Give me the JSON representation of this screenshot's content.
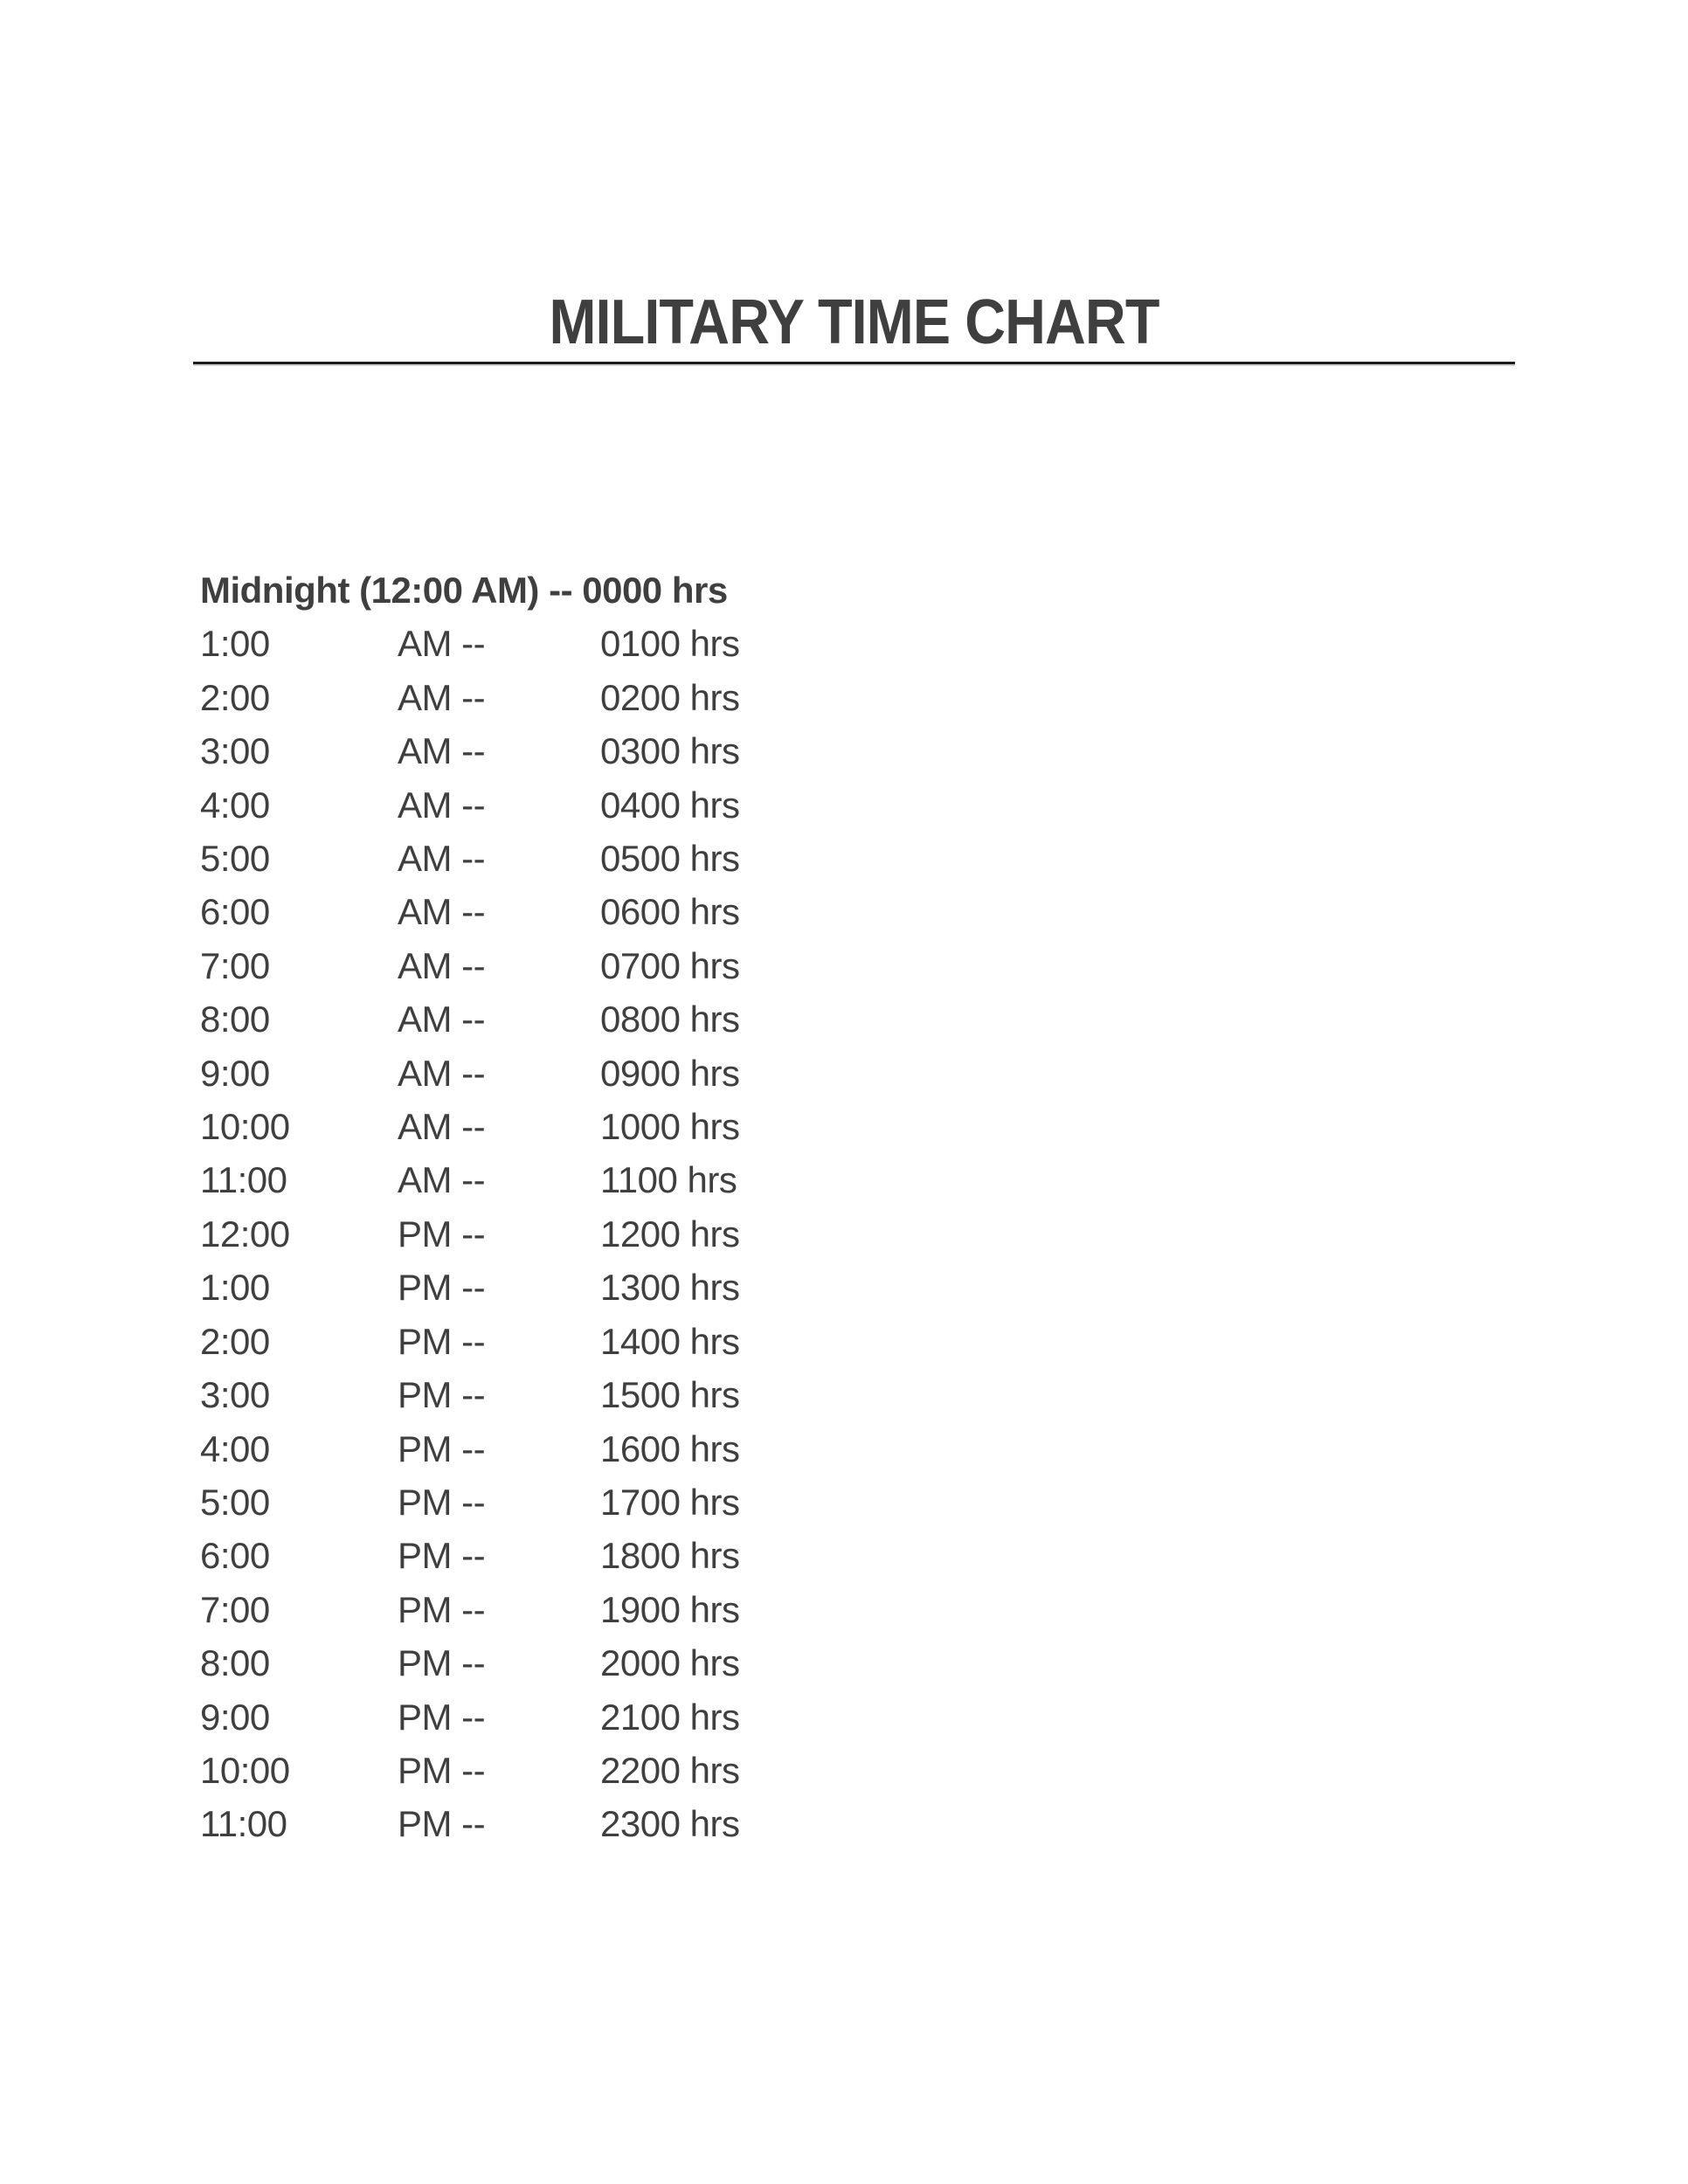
{
  "title": "MILITARY TIME CHART",
  "midnight_line": "Midnight (12:00 AM) -- 0000 hrs",
  "rows": [
    {
      "time": "1:00",
      "period": "AM",
      "dash": "--",
      "military": "0100 hrs"
    },
    {
      "time": "2:00",
      "period": "AM",
      "dash": "--",
      "military": "0200 hrs"
    },
    {
      "time": "3:00",
      "period": "AM",
      "dash": "--",
      "military": "0300 hrs"
    },
    {
      "time": "4:00",
      "period": "AM",
      "dash": "--",
      "military": "0400 hrs"
    },
    {
      "time": "5:00",
      "period": "AM",
      "dash": "--",
      "military": "0500 hrs"
    },
    {
      "time": "6:00",
      "period": "AM",
      "dash": "--",
      "military": "0600 hrs"
    },
    {
      "time": "7:00",
      "period": "AM",
      "dash": "--",
      "military": "0700 hrs"
    },
    {
      "time": "8:00",
      "period": "AM",
      "dash": "--",
      "military": "0800 hrs"
    },
    {
      "time": "9:00",
      "period": "AM",
      "dash": "--",
      "military": "0900 hrs"
    },
    {
      "time": "10:00",
      "period": "AM",
      "dash": "--",
      "military": "1000 hrs"
    },
    {
      "time": "11:00",
      "period": "AM",
      "dash": "--",
      "military": "1100 hrs"
    },
    {
      "time": "12:00",
      "period": "PM",
      "dash": "--",
      "military": "1200 hrs"
    },
    {
      "time": "1:00",
      "period": "PM",
      "dash": "--",
      "military": "1300 hrs"
    },
    {
      "time": "2:00",
      "period": "PM",
      "dash": "--",
      "military": "1400 hrs"
    },
    {
      "time": "3:00",
      "period": "PM",
      "dash": "--",
      "military": "1500 hrs"
    },
    {
      "time": "4:00",
      "period": "PM",
      "dash": "--",
      "military": "1600 hrs"
    },
    {
      "time": "5:00",
      "period": "PM",
      "dash": "--",
      "military": "1700 hrs"
    },
    {
      "time": "6:00",
      "period": "PM",
      "dash": "--",
      "military": "1800 hrs"
    },
    {
      "time": "7:00",
      "period": "PM",
      "dash": "--",
      "military": "1900 hrs"
    },
    {
      "time": "8:00",
      "period": "PM",
      "dash": "--",
      "military": "2000 hrs"
    },
    {
      "time": "9:00",
      "period": "PM",
      "dash": "--",
      "military": "2100 hrs"
    },
    {
      "time": "10:00",
      "period": "PM",
      "dash": "--",
      "military": "2200 hrs"
    },
    {
      "time": "11:00",
      "period": "PM",
      "dash": "--",
      "military": "2300 hrs"
    }
  ],
  "colors": {
    "background": "#ffffff",
    "text": "#3f3f3f",
    "underline": "#1b1b1b",
    "underline_shadow": "#cfcfcf"
  }
}
